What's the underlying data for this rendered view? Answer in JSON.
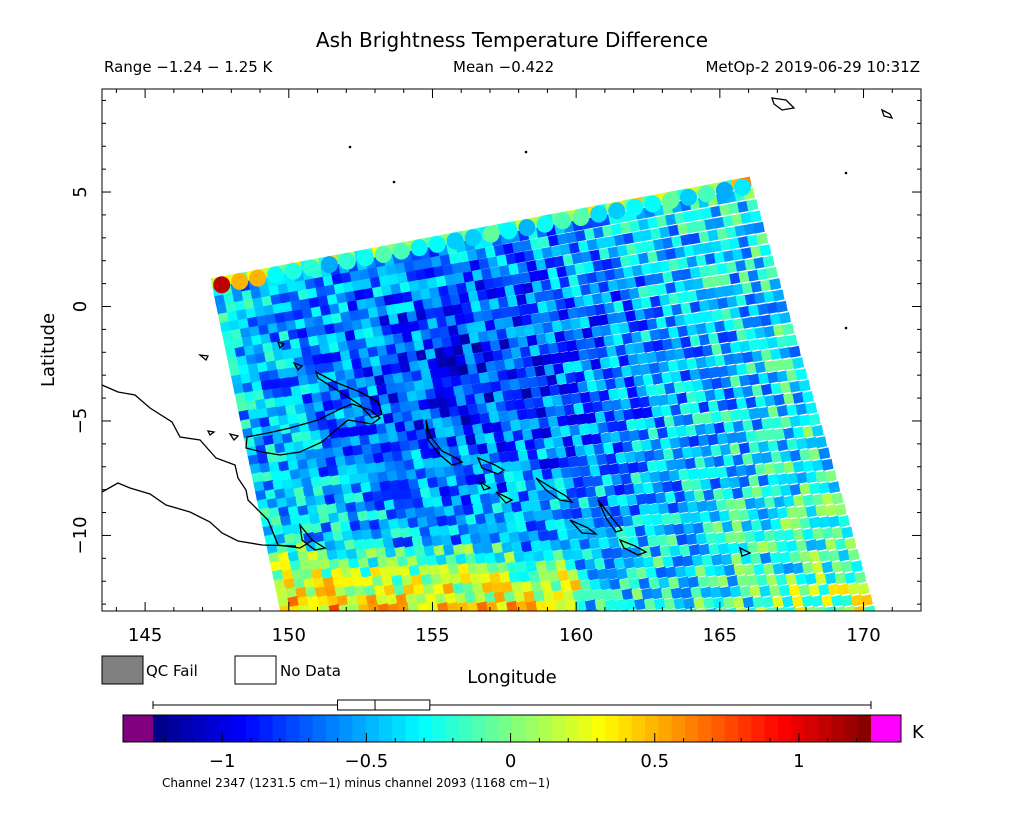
{
  "header": {
    "title": "Ash Brightness Temperature Difference",
    "range": "Range −1.24 − 1.25 K",
    "mean": "Mean −0.422",
    "satellite_time": "MetOp-2 2019-06-29 10:31Z"
  },
  "legend": {
    "qc_fail": "QC Fail",
    "no_data": "No Data",
    "qc_fail_color": "#808080",
    "no_data_color": "#ffffff"
  },
  "colorbar": {
    "unit": "K",
    "caption": "Channel 2347 (1231.5 cm−1) minus channel 2093 (1168 cm−1)",
    "range": [
      -1.24,
      1.25
    ],
    "underflow_color": "#800080",
    "overflow_color": "#ff00ff",
    "ticks": [
      {
        "value": -1,
        "label": "−1"
      },
      {
        "value": -0.5,
        "label": "−0.5"
      },
      {
        "value": 0,
        "label": "0"
      },
      {
        "value": 0.5,
        "label": "0.5"
      },
      {
        "value": 1,
        "label": "1"
      }
    ],
    "boxplot": {
      "min": -1.24,
      "q1": -0.6,
      "median": -0.47,
      "q3": -0.28,
      "max": 1.25
    }
  },
  "chart_data": {
    "type": "heatmap",
    "title": "Ash Brightness Temperature Difference",
    "xlabel": "Longitude",
    "ylabel": "Latitude",
    "xlim": [
      143.5,
      172
    ],
    "ylim": [
      -13.3,
      9.5
    ],
    "xticks": [
      {
        "value": 145,
        "label": "145"
      },
      {
        "value": 150,
        "label": "150"
      },
      {
        "value": 155,
        "label": "155"
      },
      {
        "value": 160,
        "label": "160"
      },
      {
        "value": 165,
        "label": "165"
      },
      {
        "value": 170,
        "label": "170"
      }
    ],
    "yticks": [
      {
        "value": 5,
        "label": "5"
      },
      {
        "value": 0,
        "label": "0"
      },
      {
        "value": -5,
        "label": "−5"
      },
      {
        "value": -10,
        "label": "−10"
      }
    ],
    "value_range": [
      -1.24,
      1.25
    ],
    "mean": -0.422,
    "swath_corners": {
      "top_left": [
        147.3,
        1.2
      ],
      "top_right": [
        166.0,
        5.7
      ],
      "bottom_right": [
        170.8,
        -13.3
      ],
      "bottom_left": [
        150.0,
        -13.3
      ]
    }
  }
}
